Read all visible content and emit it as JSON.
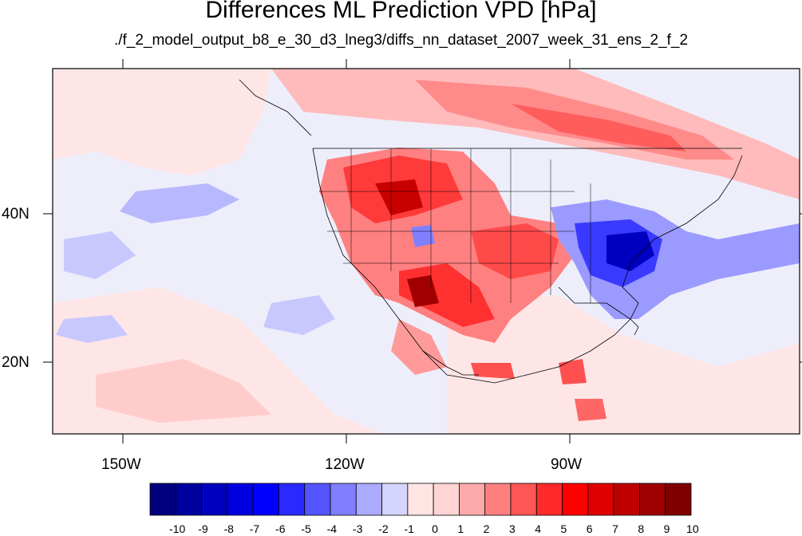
{
  "title": "Differences ML Prediction VPD [hPa]",
  "subtitle": "./f_2_model_output_b8_e_30_d3_lneg3/diffs_nn_dataset_2007_week_31_ens_2_f_2",
  "axes": {
    "lon_labels": [
      "150W",
      "120W",
      "90W"
    ],
    "lat_labels": [
      "40N",
      "20N"
    ]
  },
  "colorbar": {
    "labels": [
      "-10",
      "-9",
      "-8",
      "-7",
      "-6",
      "-5",
      "-4",
      "-3",
      "-2",
      "-1",
      "0",
      "1",
      "2",
      "3",
      "4",
      "5",
      "6",
      "7",
      "8",
      "9",
      "10"
    ],
    "colors": [
      "#00007f",
      "#00009f",
      "#0000bf",
      "#0000df",
      "#0000ff",
      "#2a2aff",
      "#5555ff",
      "#7f7fff",
      "#aaaaff",
      "#d4d4ff",
      "#ffe4e4",
      "#ffd4d4",
      "#ffaaaa",
      "#ff7f7f",
      "#ff5555",
      "#ff2a2a",
      "#ff0000",
      "#df0000",
      "#bf0000",
      "#9f0000",
      "#7f0000"
    ]
  }
}
